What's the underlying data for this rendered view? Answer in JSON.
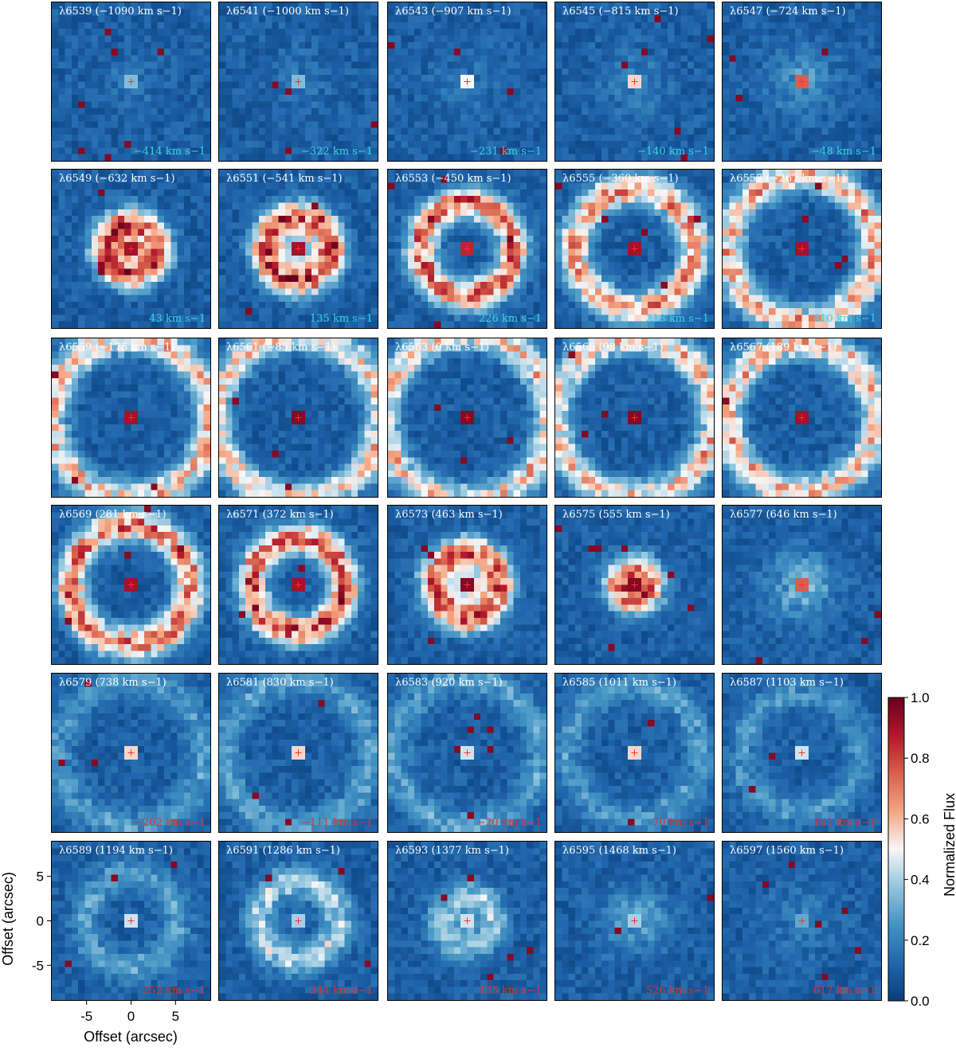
{
  "chart_data": {
    "type": "heatmap",
    "description_units": "wavelength in Angstrom, velocity in km/s",
    "xlabel": "Offset (arcsec)",
    "ylabel": "Offset (arcsec)",
    "x_ticks": [
      -5,
      0,
      5
    ],
    "y_ticks": [
      5,
      0,
      -5
    ],
    "xlim": [
      -9.0,
      9.0
    ],
    "ylim": [
      -9.0,
      9.0
    ],
    "colorbar": {
      "label": "Normalized Flux",
      "range": [
        0.0,
        1.0
      ],
      "ticks": [
        "0.0",
        "0.2",
        "0.4",
        "0.6",
        "0.8",
        "1.0"
      ],
      "colors": [
        "#083e7b",
        "#2166ac",
        "#4393c3",
        "#92c5de",
        "#f7f7f7",
        "#f4a582",
        "#d6604d",
        "#b2182b",
        "#67001f"
      ]
    },
    "panels": [
      {
        "wavelength": "λ6539",
        "velocity": "(−1090 km s−1)",
        "secondary": "−414 km s−1",
        "secondary_color": "cyan",
        "ring_radius": 0.0,
        "ring_strength": 0.03,
        "core_strength": 0.35
      },
      {
        "wavelength": "λ6541",
        "velocity": "(−1000 km s−1)",
        "secondary": "−322 km s−1",
        "secondary_color": "cyan",
        "ring_radius": 0.0,
        "ring_strength": 0.04,
        "core_strength": 0.35
      },
      {
        "wavelength": "λ6543",
        "velocity": "(−907 km s−1)",
        "secondary": "−231 km s−1",
        "secondary_color": "cyan",
        "ring_radius": 0.0,
        "ring_strength": 0.04,
        "core_strength": 0.5
      },
      {
        "wavelength": "λ6545",
        "velocity": "(−815 km s−1)",
        "secondary": "−140 km s−1",
        "secondary_color": "cyan",
        "ring_radius": 0.0,
        "ring_strength": 0.06,
        "core_strength": 0.55
      },
      {
        "wavelength": "λ6547",
        "velocity": "(−724 km s−1)",
        "secondary": "−48 km s−1",
        "secondary_color": "cyan",
        "ring_radius": 0.0,
        "ring_strength": 0.1,
        "core_strength": 0.75
      },
      {
        "wavelength": "λ6549",
        "velocity": "(−632 km s−1)",
        "secondary": "43 km s−1",
        "secondary_color": "cyan",
        "ring_radius": 2.0,
        "ring_strength": 0.7,
        "core_strength": 0.9
      },
      {
        "wavelength": "λ6551",
        "velocity": "(−541 km s−1)",
        "secondary": "135 km s−1",
        "secondary_color": "cyan",
        "ring_radius": 2.5,
        "ring_strength": 0.75,
        "core_strength": 0.9
      },
      {
        "wavelength": "λ6553",
        "velocity": "(−450 km s−1)",
        "secondary": "226 km s−1",
        "secondary_color": "cyan",
        "ring_radius": 3.5,
        "ring_strength": 0.7,
        "core_strength": 0.85
      },
      {
        "wavelength": "λ6555",
        "velocity": "(−360 km s−1)",
        "secondary": "318 km s−1",
        "secondary_color": "cyan",
        "ring_radius": 4.5,
        "ring_strength": 0.62,
        "core_strength": 0.9
      },
      {
        "wavelength": "λ6557",
        "velocity": "(−267 km s−1)",
        "secondary": "410 km s−1",
        "secondary_color": "cyan",
        "ring_radius": 5.5,
        "ring_strength": 0.55,
        "core_strength": 0.9
      },
      {
        "wavelength": "λ6559",
        "velocity": "(−175 km s−1)",
        "secondary": "",
        "secondary_color": "",
        "ring_radius": 6.0,
        "ring_strength": 0.52,
        "core_strength": 0.9
      },
      {
        "wavelength": "λ6561",
        "velocity": "(−85 km s−1)",
        "secondary": "",
        "secondary_color": "",
        "ring_radius": 6.2,
        "ring_strength": 0.5,
        "core_strength": 0.95
      },
      {
        "wavelength": "λ6563",
        "velocity": "(0 km s−1)",
        "secondary": "",
        "secondary_color": "",
        "ring_radius": 6.3,
        "ring_strength": 0.5,
        "core_strength": 0.95
      },
      {
        "wavelength": "λ6565",
        "velocity": "(98 km s−1)",
        "secondary": "",
        "secondary_color": "",
        "ring_radius": 6.0,
        "ring_strength": 0.52,
        "core_strength": 0.95
      },
      {
        "wavelength": "λ6567",
        "velocity": "(189 km s−1)",
        "secondary": "",
        "secondary_color": "",
        "ring_radius": 5.6,
        "ring_strength": 0.55,
        "core_strength": 0.9
      },
      {
        "wavelength": "λ6569",
        "velocity": "(281 km s−1)",
        "secondary": "",
        "secondary_color": "",
        "ring_radius": 4.5,
        "ring_strength": 0.68,
        "core_strength": 0.9
      },
      {
        "wavelength": "λ6571",
        "velocity": "(372 km s−1)",
        "secondary": "",
        "secondary_color": "",
        "ring_radius": 3.5,
        "ring_strength": 0.72,
        "core_strength": 0.9
      },
      {
        "wavelength": "λ6573",
        "velocity": "(463 km s−1)",
        "secondary": "",
        "secondary_color": "",
        "ring_radius": 2.5,
        "ring_strength": 0.72,
        "core_strength": 0.95
      },
      {
        "wavelength": "λ6575",
        "velocity": "(555 km s−1)",
        "secondary": "",
        "secondary_color": "",
        "ring_radius": 1.2,
        "ring_strength": 0.55,
        "core_strength": 0.95
      },
      {
        "wavelength": "λ6577",
        "velocity": "(646 km s−1)",
        "secondary": "",
        "secondary_color": "",
        "ring_radius": 0.0,
        "ring_strength": 0.15,
        "core_strength": 0.75
      },
      {
        "wavelength": "λ6579",
        "velocity": "(738 km s−1)",
        "secondary": "−202 km s−1",
        "secondary_color": "red",
        "ring_radius": 5.5,
        "ring_strength": 0.18,
        "core_strength": 0.55
      },
      {
        "wavelength": "λ6581",
        "velocity": "(830 km s−1)",
        "secondary": "−111 km s−1",
        "secondary_color": "red",
        "ring_radius": 5.5,
        "ring_strength": 0.2,
        "core_strength": 0.55
      },
      {
        "wavelength": "λ6583",
        "velocity": "(920 km s−1)",
        "secondary": "−20 km s−1",
        "secondary_color": "red",
        "ring_radius": 5.5,
        "ring_strength": 0.2,
        "core_strength": 0.45
      },
      {
        "wavelength": "λ6585",
        "velocity": "(1011 km s−1)",
        "secondary": "70 km s−1",
        "secondary_color": "red",
        "ring_radius": 5.0,
        "ring_strength": 0.18,
        "core_strength": 0.55
      },
      {
        "wavelength": "λ6587",
        "velocity": "(1103 km s−1)",
        "secondary": "161 km s−1",
        "secondary_color": "red",
        "ring_radius": 4.5,
        "ring_strength": 0.17,
        "core_strength": 0.45
      },
      {
        "wavelength": "λ6589",
        "velocity": "(1194 km s−1)",
        "secondary": "252 km s−1",
        "secondary_color": "red",
        "ring_radius": 3.5,
        "ring_strength": 0.2,
        "core_strength": 0.45
      },
      {
        "wavelength": "λ6591",
        "velocity": "(1286 km s−1)",
        "secondary": "344 km s−1",
        "secondary_color": "red",
        "ring_radius": 3.0,
        "ring_strength": 0.35,
        "core_strength": 0.4
      },
      {
        "wavelength": "λ6593",
        "velocity": "(1377 km s−1)",
        "secondary": "435 km s−1",
        "secondary_color": "red",
        "ring_radius": 2.0,
        "ring_strength": 0.28,
        "core_strength": 0.45
      },
      {
        "wavelength": "λ6595",
        "velocity": "(1468 km s−1)",
        "secondary": "526 km s−1",
        "secondary_color": "red",
        "ring_radius": 0.0,
        "ring_strength": 0.12,
        "core_strength": 0.4
      },
      {
        "wavelength": "λ6597",
        "velocity": "(1560 km s−1)",
        "secondary": "617 km s−1",
        "secondary_color": "red",
        "ring_radius": 0.0,
        "ring_strength": 0.06,
        "core_strength": 0.3
      }
    ]
  }
}
